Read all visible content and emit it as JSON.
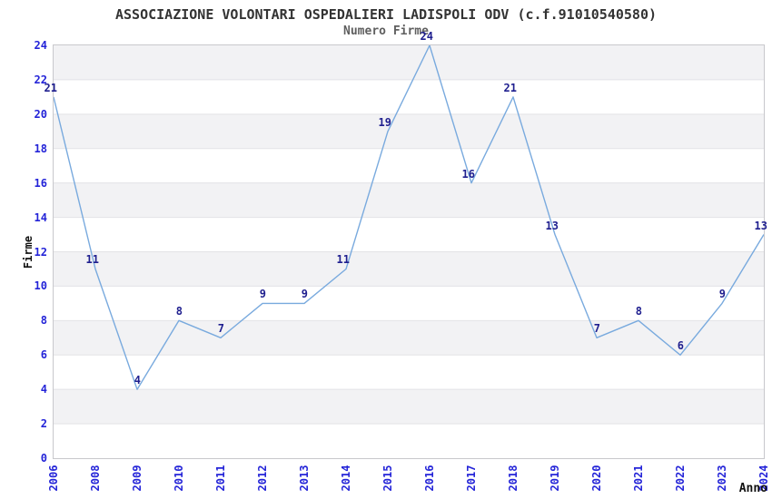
{
  "chart_data": {
    "type": "line",
    "title": "ASSOCIAZIONE VOLONTARI OSPEDALIERI LADISPOLI ODV (c.f.91010540580)",
    "subtitle": "Numero Firme",
    "xlabel": "Anno",
    "ylabel": "Firme",
    "categories": [
      "2006",
      "2008",
      "2009",
      "2010",
      "2011",
      "2012",
      "2013",
      "2014",
      "2015",
      "2016",
      "2017",
      "2018",
      "2019",
      "2020",
      "2021",
      "2022",
      "2023",
      "2024"
    ],
    "values": [
      21,
      11,
      4,
      8,
      7,
      9,
      9,
      11,
      19,
      24,
      16,
      21,
      13,
      7,
      8,
      6,
      9,
      13
    ],
    "ylim": [
      0,
      24
    ],
    "ytick_step": 2,
    "grid": "alternating horizontal bands every 2 units",
    "legend": "none",
    "point_labels_visible": true,
    "colors": {
      "line": "#79aade",
      "data_label": "#1f1f8f",
      "tick_label": "#2424d8",
      "band": "#f2f2f4",
      "gridline": "#e3e3e6",
      "plot_border": "#c8c8cc",
      "title": "#333333",
      "subtitle": "#5f5f5f",
      "axis_title": "#111111",
      "background": "#ffffff"
    }
  }
}
